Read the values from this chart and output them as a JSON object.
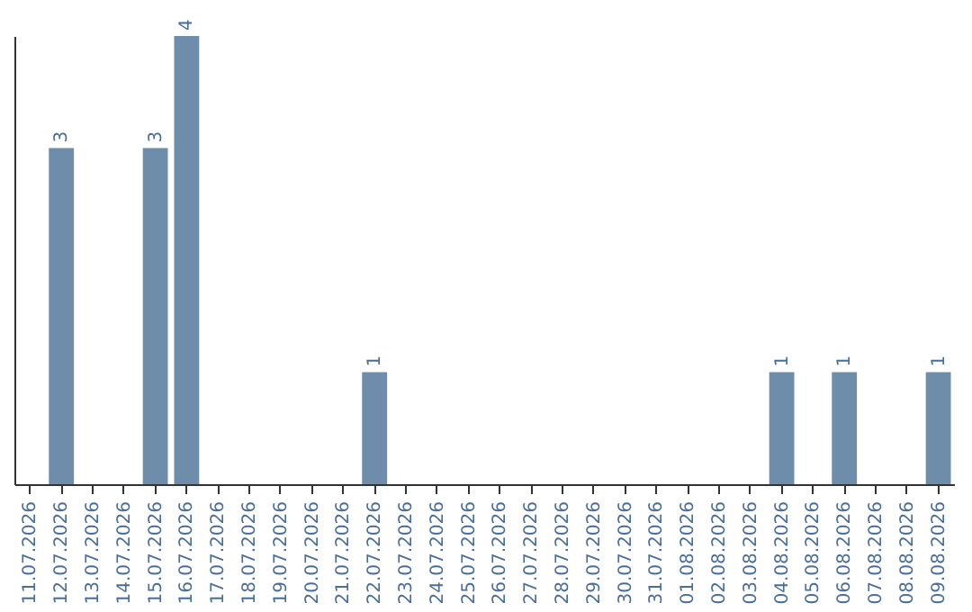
{
  "chart_data": {
    "type": "bar",
    "categories": [
      "11.07.2026",
      "12.07.2026",
      "13.07.2026",
      "14.07.2026",
      "15.07.2026",
      "16.07.2026",
      "17.07.2026",
      "18.07.2026",
      "19.07.2026",
      "20.07.2026",
      "21.07.2026",
      "22.07.2026",
      "23.07.2026",
      "24.07.2026",
      "25.07.2026",
      "26.07.2026",
      "27.07.2026",
      "28.07.2026",
      "29.07.2026",
      "30.07.2026",
      "31.07.2026",
      "01.08.2026",
      "02.08.2026",
      "03.08.2026",
      "04.08.2026",
      "05.08.2026",
      "06.08.2026",
      "07.08.2026",
      "08.08.2026",
      "09.08.2026"
    ],
    "values": [
      null,
      3,
      null,
      null,
      3,
      4,
      null,
      null,
      null,
      null,
      null,
      1,
      null,
      null,
      null,
      null,
      null,
      null,
      null,
      null,
      null,
      null,
      null,
      null,
      1,
      null,
      1,
      null,
      null,
      1
    ],
    "color": "#6d8dab",
    "data_labels": true
  }
}
